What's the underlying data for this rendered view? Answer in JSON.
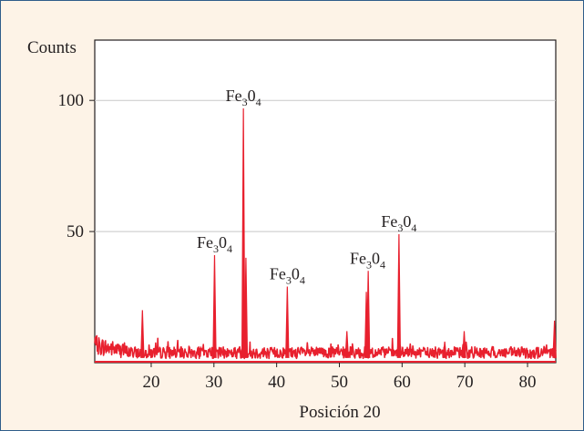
{
  "chart_data": {
    "type": "line",
    "ylabel": "Counts",
    "xlabel": "Posición 20",
    "xlim": [
      11,
      84.5
    ],
    "ylim": [
      0,
      123
    ],
    "x_ticks": [
      20,
      30,
      40,
      50,
      60,
      70,
      80
    ],
    "x_tick_labels": [
      "20",
      "30",
      "40",
      "50",
      "60",
      "70",
      "80"
    ],
    "y_ticks": [
      50,
      100
    ],
    "y_tick_labels": [
      "50",
      "100"
    ],
    "grid": {
      "horizontal": true,
      "vertical": false
    },
    "series": [
      {
        "color": "#e8202e",
        "peaks": [
          {
            "x": 18.6,
            "y": 20
          },
          {
            "x": 30.1,
            "y": 41
          },
          {
            "x": 34.7,
            "y": 97
          },
          {
            "x": 35.1,
            "y": 40
          },
          {
            "x": 41.7,
            "y": 29
          },
          {
            "x": 51.2,
            "y": 12
          },
          {
            "x": 54.3,
            "y": 27
          },
          {
            "x": 54.6,
            "y": 35
          },
          {
            "x": 59.5,
            "y": 49
          },
          {
            "x": 66.8,
            "y": 8
          },
          {
            "x": 69.9,
            "y": 12
          },
          {
            "x": 84.3,
            "y": 16
          }
        ],
        "baseline": 4
      }
    ],
    "annotations": [
      {
        "base": "Fe",
        "sub1": "3",
        "mid": "0",
        "sub2": "4",
        "x": 34.7,
        "y": 97
      },
      {
        "base": "Fe",
        "sub1": "3",
        "mid": "0",
        "sub2": "4",
        "x": 30.1,
        "y": 41
      },
      {
        "base": "Fe",
        "sub1": "3",
        "mid": "0",
        "sub2": "4",
        "x": 41.7,
        "y": 29
      },
      {
        "base": "Fe",
        "sub1": "3",
        "mid": "0",
        "sub2": "4",
        "x": 54.5,
        "y": 35
      },
      {
        "base": "Fe",
        "sub1": "3",
        "mid": "0",
        "sub2": "4",
        "x": 59.5,
        "y": 49
      }
    ]
  }
}
